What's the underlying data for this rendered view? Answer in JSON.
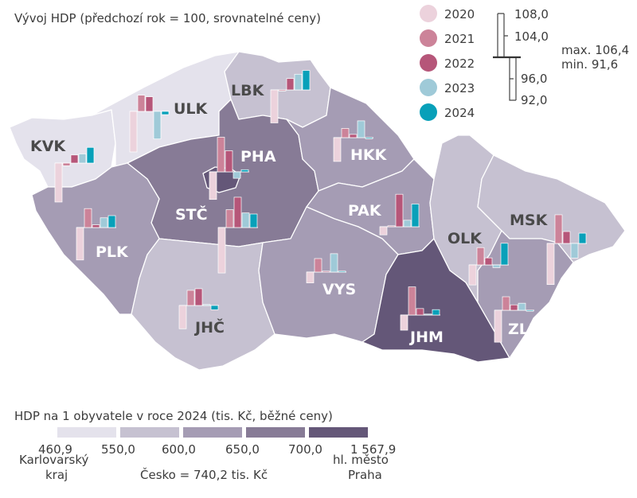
{
  "title": "Vývoj HDP (předchozí rok = 100, srovnatelné ceny)",
  "years": [
    {
      "label": "2020",
      "color": "#ecd2dc"
    },
    {
      "label": "2021",
      "color": "#cc8399"
    },
    {
      "label": "2022",
      "color": "#b65679"
    },
    {
      "label": "2023",
      "color": "#9fcad8"
    },
    {
      "label": "2024",
      "color": "#08a0b9"
    }
  ],
  "scale": {
    "ticks": [
      "108,0",
      "104,0",
      "96,0",
      "92,0"
    ],
    "max": "max. 106,4",
    "min": "min. 91,6",
    "baseline": 100
  },
  "choropleth": {
    "title": "HDP na 1 obyvatele v roce 2024 (tis. Kč, běžné ceny)",
    "colors": [
      "#e4e2ec",
      "#c6c1d1",
      "#a59cb4",
      "#877b96",
      "#645778"
    ],
    "breaks": [
      "460,9",
      "550,0",
      "600,0",
      "650,0",
      "700,0",
      "1 567,9"
    ],
    "min_label": [
      "Karlovarský",
      "kraj"
    ],
    "max_label": [
      "hl. město",
      "Praha"
    ],
    "national": "Česko = 740,2 tis. Kč"
  },
  "regions": [
    {
      "code": "KVK",
      "class": 0,
      "values": [
        92.8,
        99.5,
        101.5,
        101.7,
        102.9
      ]
    },
    {
      "code": "ULK",
      "class": 0,
      "values": [
        92.5,
        103.0,
        102.7,
        94.9,
        99.4
      ]
    },
    {
      "code": "LBK",
      "class": 1,
      "values": [
        93.9,
        99.8,
        102.1,
        102.9,
        103.6
      ]
    },
    {
      "code": "STČ",
      "class": 3,
      "values": [
        91.6,
        103.3,
        105.6,
        102.7,
        102.5
      ]
    },
    {
      "code": "PHA",
      "class": 4,
      "values": [
        94.9,
        106.4,
        103.9,
        98.8,
        100.4
      ]
    },
    {
      "code": "PLK",
      "class": 2,
      "values": [
        94.0,
        103.5,
        100.5,
        101.8,
        102.2
      ]
    },
    {
      "code": "JHČ",
      "class": 1,
      "values": [
        95.7,
        102.8,
        103.1,
        100.0,
        99.2
      ]
    },
    {
      "code": "HKK",
      "class": 2,
      "values": [
        95.6,
        101.7,
        100.6,
        103.1,
        99.8
      ]
    },
    {
      "code": "PAK",
      "class": 2,
      "values": [
        98.5,
        100.0,
        106.0,
        101.2,
        104.2
      ]
    },
    {
      "code": "VYS",
      "class": 2,
      "values": [
        98.0,
        102.5,
        100.0,
        103.4,
        100.1
      ]
    },
    {
      "code": "JHM",
      "class": 4,
      "values": [
        97.2,
        105.2,
        101.2,
        100.1,
        101.0
      ]
    },
    {
      "code": "OLK",
      "class": 1,
      "values": [
        96.3,
        103.2,
        101.3,
        99.5,
        104.0
      ]
    },
    {
      "code": "MSK",
      "class": 1,
      "values": [
        92.4,
        105.3,
        102.2,
        97.3,
        101.9
      ]
    },
    {
      "code": "ZLK",
      "class": 2,
      "values": [
        94.1,
        102.5,
        101.0,
        101.3,
        99.9
      ]
    }
  ]
}
